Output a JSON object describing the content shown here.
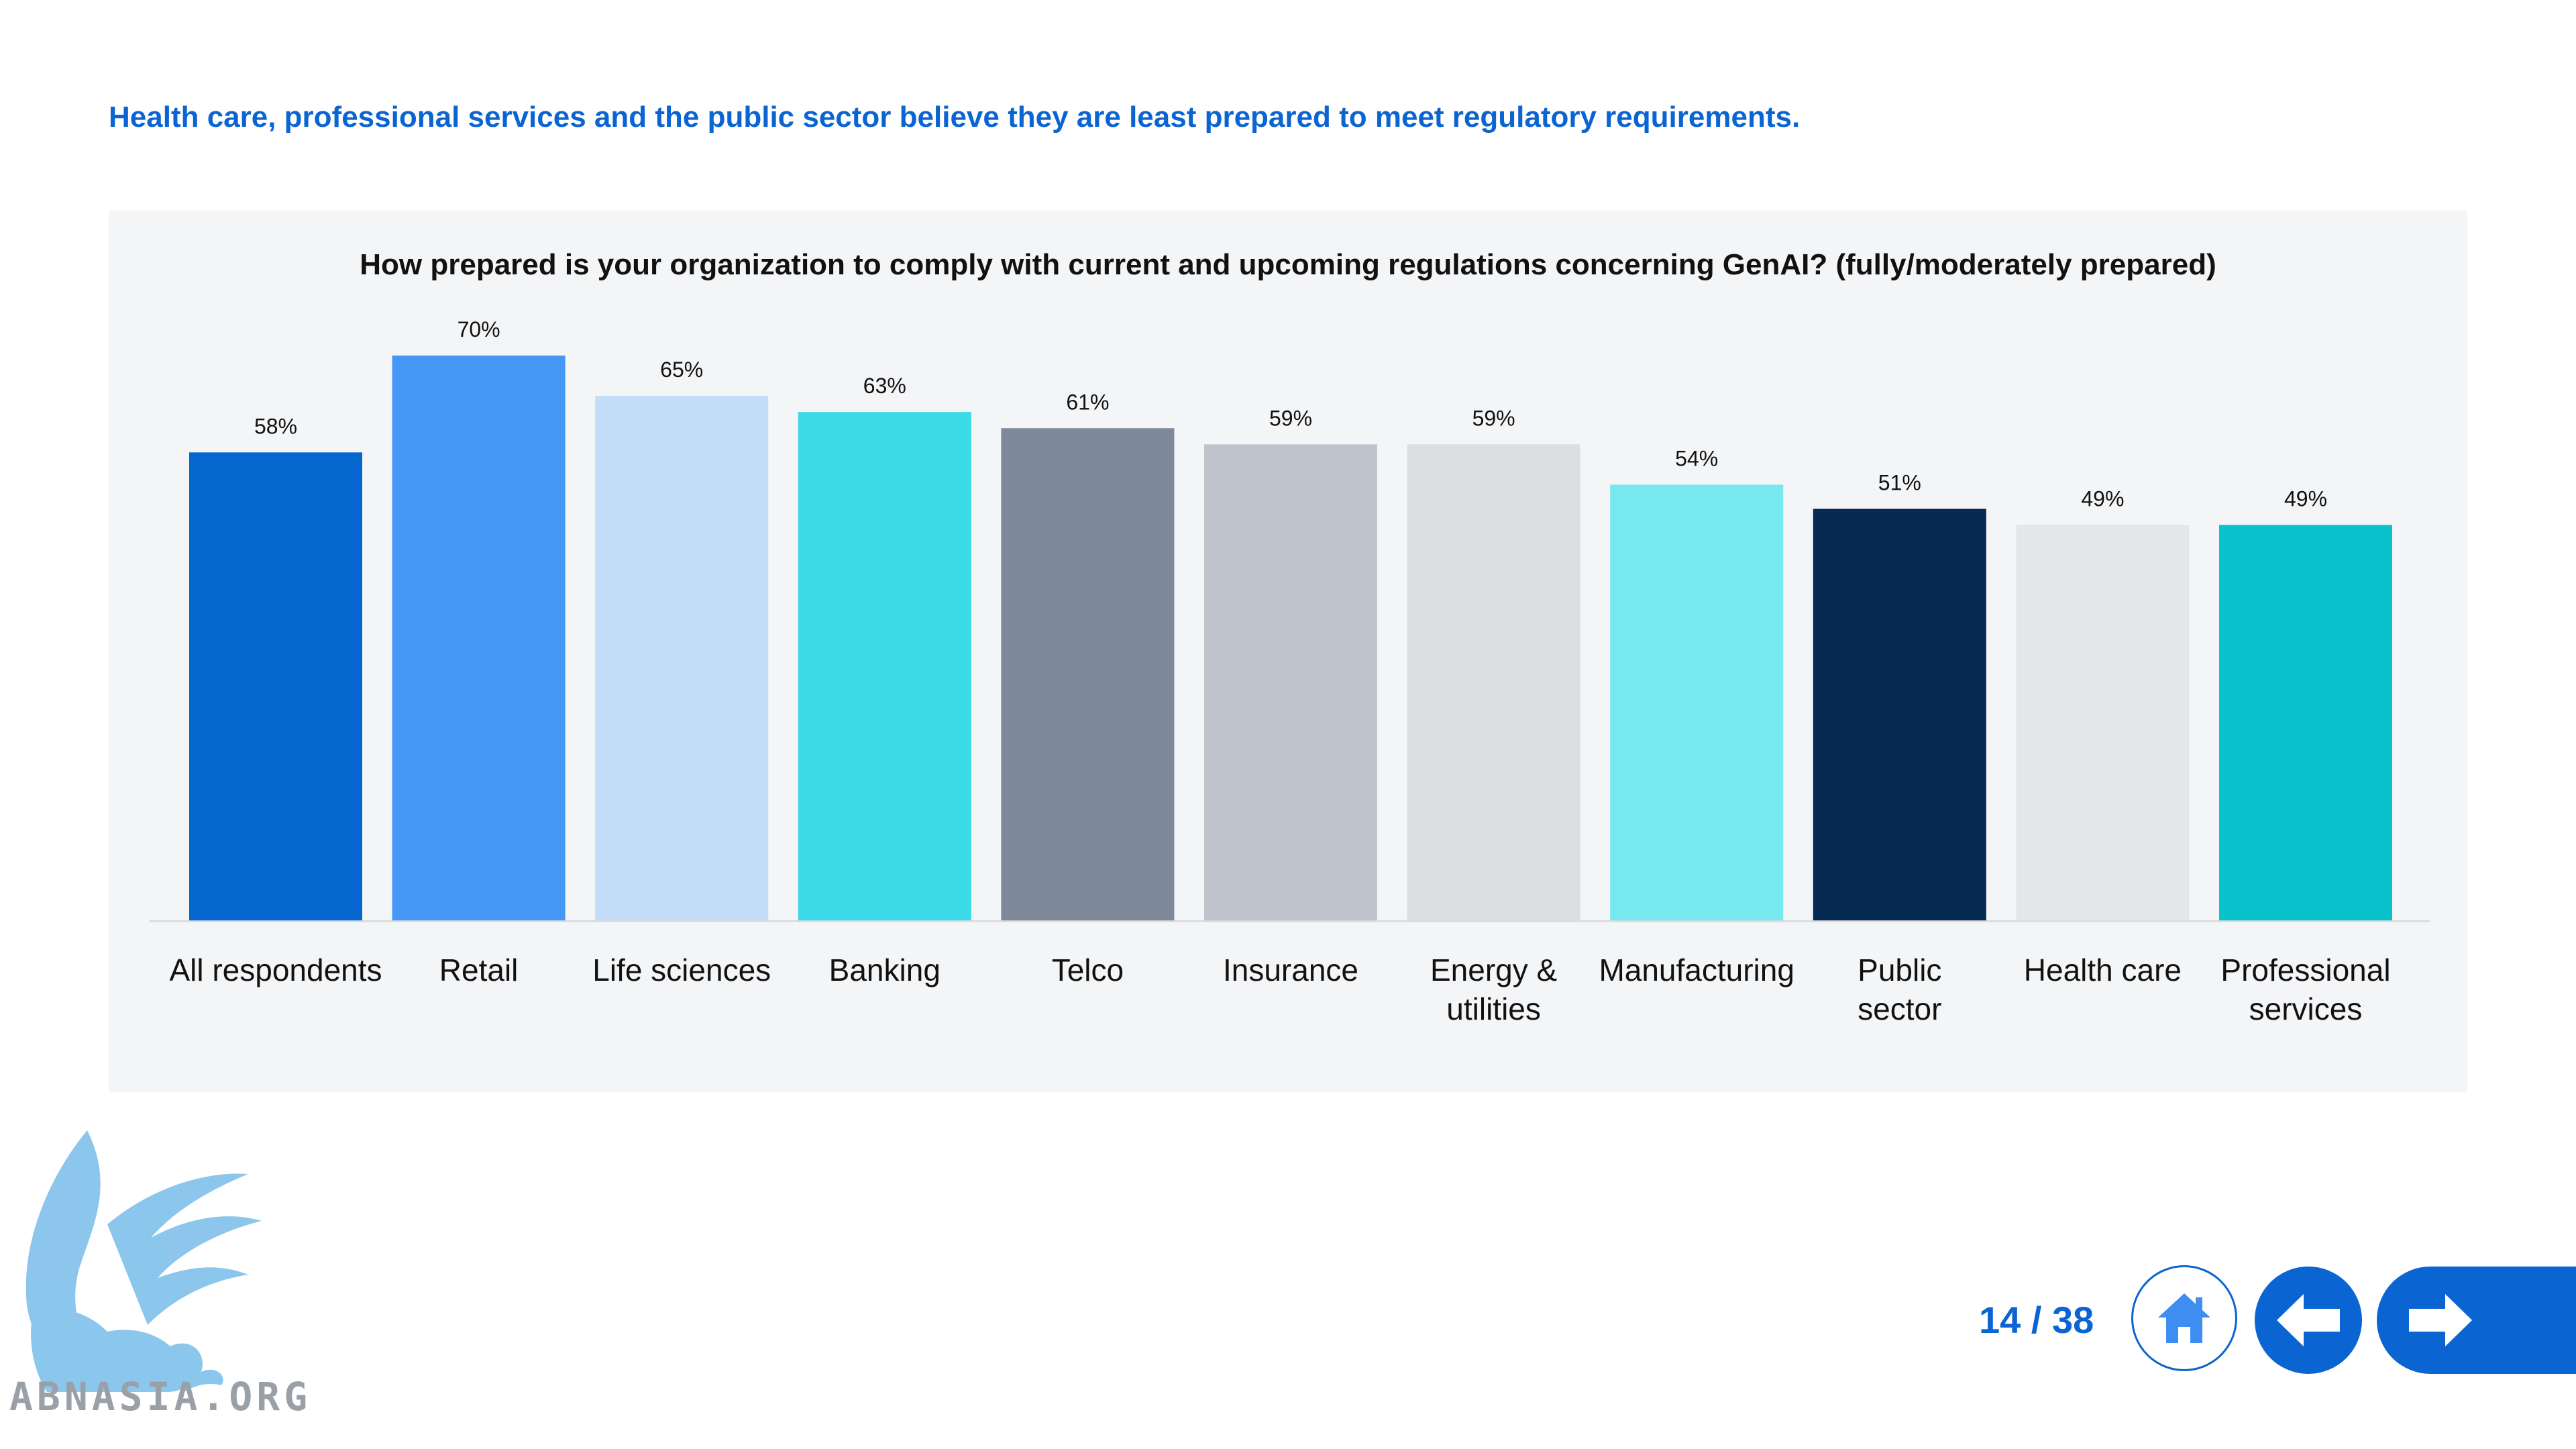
{
  "headline": "Health care, professional services and the public sector believe they are least prepared to meet regulatory requirements.",
  "chart_data": {
    "type": "bar",
    "title": "How prepared is your organization to comply with current and upcoming regulations concerning GenAI? (fully/moderately prepared)",
    "categories": [
      [
        "All respondents"
      ],
      [
        "Retail"
      ],
      [
        "Life sciences"
      ],
      [
        "Banking"
      ],
      [
        "Telco"
      ],
      [
        "Insurance"
      ],
      [
        "Energy &",
        "utilities"
      ],
      [
        "Manufacturing"
      ],
      [
        "Public",
        "sector"
      ],
      [
        "Health care"
      ],
      [
        "Professional",
        "services"
      ]
    ],
    "values": [
      58,
      70,
      65,
      63,
      61,
      59,
      59,
      54,
      51,
      49,
      49
    ],
    "value_labels": [
      "58%",
      "70%",
      "65%",
      "63%",
      "61%",
      "59%",
      "59%",
      "54%",
      "51%",
      "49%",
      "49%"
    ],
    "colors": [
      "#0666d0",
      "#4597f5",
      "#c3ddf8",
      "#3adbe6",
      "#7d8899",
      "#bec3cc",
      "#dcdfe2",
      "#78e8ef",
      "#062a51",
      "#e4e6e8",
      "#0ac2cc"
    ],
    "ylim": [
      0,
      70
    ],
    "xlabel": "",
    "ylabel": "",
    "grid": false,
    "legend": "none"
  },
  "footer": {
    "page_indicator": "14 / 38",
    "home_icon": "home-icon",
    "back_icon": "arrow-left-icon",
    "next_icon": "arrow-right-icon",
    "accent": "#0a64d2"
  },
  "watermark": {
    "text": "ABNASIA.ORG",
    "icon": "griffin-logo"
  }
}
